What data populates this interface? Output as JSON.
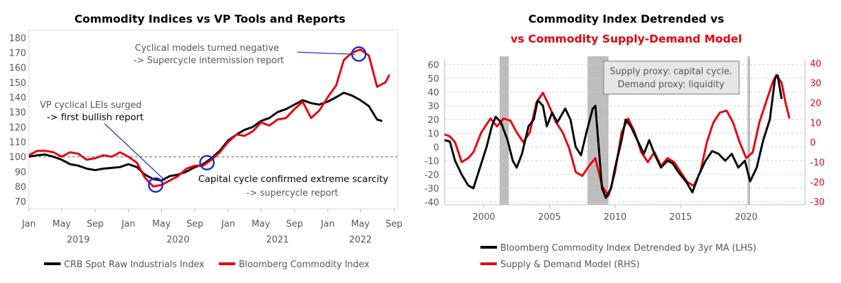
{
  "chart_data": [
    {
      "type": "line",
      "title": "Commodity Indices vs VP Tools and Reports",
      "x_tick_labels": [
        "Jan",
        "May",
        "Sep",
        "Jan",
        "May",
        "Sep",
        "Jan",
        "May",
        "Sep",
        "Jan",
        "May",
        "Sep"
      ],
      "x_year_labels": [
        "2019",
        "2020",
        "2021",
        "2022"
      ],
      "y_tick_labels": [
        "70",
        "80",
        "90",
        "100",
        "110",
        "120",
        "130",
        "140",
        "150",
        "160",
        "170",
        "180"
      ],
      "ylim": [
        65,
        185
      ],
      "xlim": [
        "2019-01",
        "2022-09"
      ],
      "reference_line": 100,
      "series": [
        {
          "name": "CRB Spot Raw Industrials Index",
          "color": "#000000",
          "points": [
            [
              "2019-01-01",
              100
            ],
            [
              "2019-02-01",
              101
            ],
            [
              "2019-03-01",
              101.5
            ],
            [
              "2019-04-01",
              100
            ],
            [
              "2019-05-01",
              98
            ],
            [
              "2019-06-01",
              95
            ],
            [
              "2019-07-01",
              94
            ],
            [
              "2019-08-01",
              92
            ],
            [
              "2019-09-01",
              91
            ],
            [
              "2019-10-01",
              92
            ],
            [
              "2019-11-01",
              92.5
            ],
            [
              "2019-12-01",
              93
            ],
            [
              "2020-01-01",
              95
            ],
            [
              "2020-02-01",
              93
            ],
            [
              "2020-03-01",
              88
            ],
            [
              "2020-04-01",
              85
            ],
            [
              "2020-05-01",
              84
            ],
            [
              "2020-06-01",
              87
            ],
            [
              "2020-07-01",
              88
            ],
            [
              "2020-08-01",
              90
            ],
            [
              "2020-09-01",
              93
            ],
            [
              "2020-10-01",
              95
            ],
            [
              "2020-11-01",
              99
            ],
            [
              "2020-12-01",
              104
            ],
            [
              "2021-01-01",
              111
            ],
            [
              "2021-02-01",
              115
            ],
            [
              "2021-03-01",
              118
            ],
            [
              "2021-04-01",
              120
            ],
            [
              "2021-05-01",
              124
            ],
            [
              "2021-06-01",
              126
            ],
            [
              "2021-07-01",
              130
            ],
            [
              "2021-08-01",
              132
            ],
            [
              "2021-09-01",
              135
            ],
            [
              "2021-10-01",
              138
            ],
            [
              "2021-11-01",
              136
            ],
            [
              "2021-12-01",
              135
            ],
            [
              "2022-01-01",
              137
            ],
            [
              "2022-02-01",
              140
            ],
            [
              "2022-03-01",
              143
            ],
            [
              "2022-04-01",
              141
            ],
            [
              "2022-05-01",
              138
            ],
            [
              "2022-06-01",
              134
            ],
            [
              "2022-07-01",
              125
            ],
            [
              "2022-07-20",
              124
            ]
          ]
        },
        {
          "name": "Bloomberg Commodity Index",
          "color": "#e8000b",
          "points": [
            [
              "2019-01-01",
              101
            ],
            [
              "2019-02-01",
              104
            ],
            [
              "2019-03-01",
              104
            ],
            [
              "2019-04-01",
              103
            ],
            [
              "2019-05-01",
              100
            ],
            [
              "2019-06-01",
              103
            ],
            [
              "2019-07-01",
              102
            ],
            [
              "2019-08-01",
              98
            ],
            [
              "2019-09-01",
              99
            ],
            [
              "2019-10-01",
              101
            ],
            [
              "2019-11-01",
              100
            ],
            [
              "2019-12-01",
              103
            ],
            [
              "2020-01-01",
              100
            ],
            [
              "2020-02-01",
              96
            ],
            [
              "2020-03-01",
              86
            ],
            [
              "2020-04-01",
              80
            ],
            [
              "2020-05-01",
              81
            ],
            [
              "2020-06-01",
              84
            ],
            [
              "2020-07-01",
              87
            ],
            [
              "2020-08-01",
              92
            ],
            [
              "2020-09-01",
              94
            ],
            [
              "2020-10-01",
              94
            ],
            [
              "2020-11-01",
              98
            ],
            [
              "2020-12-01",
              103
            ],
            [
              "2021-01-01",
              110
            ],
            [
              "2021-02-01",
              115
            ],
            [
              "2021-03-01",
              114
            ],
            [
              "2021-04-01",
              117
            ],
            [
              "2021-05-01",
              123
            ],
            [
              "2021-06-01",
              121
            ],
            [
              "2021-07-01",
              125
            ],
            [
              "2021-08-01",
              126
            ],
            [
              "2021-09-01",
              132
            ],
            [
              "2021-10-01",
              137
            ],
            [
              "2021-11-01",
              126
            ],
            [
              "2021-12-01",
              131
            ],
            [
              "2022-01-01",
              140
            ],
            [
              "2022-02-01",
              148
            ],
            [
              "2022-03-01",
              165
            ],
            [
              "2022-04-01",
              170
            ],
            [
              "2022-05-01",
              172
            ],
            [
              "2022-06-01",
              168
            ],
            [
              "2022-07-01",
              147
            ],
            [
              "2022-08-01",
              150
            ],
            [
              "2022-08-15",
              155
            ]
          ]
        }
      ],
      "highlights": [
        {
          "date": "2020-04-10",
          "value": 81
        },
        {
          "date": "2020-10-15",
          "value": 96
        },
        {
          "date": "2022-04-25",
          "value": 169
        }
      ],
      "annotations": [
        {
          "line1": "VP cyclical LEIs surged",
          "line2": "-> first bullish report"
        },
        {
          "line1": "Capital cycle confirmed extreme scarcity",
          "line2": "-> supercycle report"
        },
        {
          "line1": "Cyclical models turned negative",
          "line2": "-> Supercycle intermission report"
        }
      ],
      "legend_position": "bottom"
    },
    {
      "type": "line",
      "title_line1": "Commodity Index Detrended vs",
      "title_line2": "vs Commodity Supply-Demand Model",
      "title_line2_color": "#e8000b",
      "x_tick_labels": [
        "2000",
        "2005",
        "2010",
        "2015",
        "2020"
      ],
      "xlim": [
        1997,
        2024.5
      ],
      "y_left_tick_labels": [
        "-40",
        "-30",
        "-20",
        "-10",
        "0",
        "10",
        "20",
        "30",
        "40",
        "50",
        "60"
      ],
      "y_left_lim": [
        -42,
        64
      ],
      "y_right_tick_labels": [
        "-30",
        "-20",
        "-10",
        "0",
        "10",
        "20",
        "30",
        "40"
      ],
      "y_right_lim": [
        -31.5,
        42
      ],
      "shaded_periods": [
        [
          2001.2,
          2001.9
        ],
        [
          2007.9,
          2009.5
        ],
        [
          2020.1,
          2020.3
        ]
      ],
      "annotation_box": {
        "line1": "Supply proxy: capital cycle.",
        "line2": "Demand proxy: liquidity"
      },
      "series": [
        {
          "name": "Bloomberg Commodity Index Detrended by 3yr MA (LHS)",
          "color": "#000000",
          "axis": "left",
          "points": [
            [
              1997.0,
              5
            ],
            [
              1997.4,
              4
            ],
            [
              1997.8,
              -10
            ],
            [
              1998.3,
              -20
            ],
            [
              1998.8,
              -28
            ],
            [
              1999.2,
              -30
            ],
            [
              1999.6,
              -18
            ],
            [
              2000.2,
              0
            ],
            [
              2000.6,
              15
            ],
            [
              2000.9,
              22
            ],
            [
              2001.3,
              18
            ],
            [
              2001.8,
              5
            ],
            [
              2002.2,
              -10
            ],
            [
              2002.5,
              -15
            ],
            [
              2002.9,
              -5
            ],
            [
              2003.4,
              15
            ],
            [
              2003.8,
              20
            ],
            [
              2004.1,
              34
            ],
            [
              2004.5,
              30
            ],
            [
              2004.8,
              15
            ],
            [
              2005.2,
              25
            ],
            [
              2005.6,
              18
            ],
            [
              2006.2,
              28
            ],
            [
              2006.6,
              20
            ],
            [
              2007.0,
              0
            ],
            [
              2007.4,
              -6
            ],
            [
              2007.8,
              10
            ],
            [
              2008.3,
              28
            ],
            [
              2008.5,
              30
            ],
            [
              2008.8,
              -5
            ],
            [
              2009.0,
              -30
            ],
            [
              2009.3,
              -37
            ],
            [
              2009.7,
              -30
            ],
            [
              2010.0,
              -15
            ],
            [
              2010.5,
              5
            ],
            [
              2010.8,
              20
            ],
            [
              2011.2,
              15
            ],
            [
              2011.7,
              5
            ],
            [
              2012.2,
              -5
            ],
            [
              2012.6,
              5
            ],
            [
              2013.0,
              -5
            ],
            [
              2013.5,
              -15
            ],
            [
              2014.0,
              -10
            ],
            [
              2014.4,
              -12
            ],
            [
              2014.8,
              -18
            ],
            [
              2015.4,
              -25
            ],
            [
              2015.9,
              -33
            ],
            [
              2016.4,
              -20
            ],
            [
              2016.9,
              -10
            ],
            [
              2017.4,
              -3
            ],
            [
              2017.9,
              -5
            ],
            [
              2018.4,
              -10
            ],
            [
              2018.9,
              -5
            ],
            [
              2019.4,
              -15
            ],
            [
              2019.9,
              -10
            ],
            [
              2020.3,
              -25
            ],
            [
              2020.8,
              -15
            ],
            [
              2021.3,
              5
            ],
            [
              2021.8,
              20
            ],
            [
              2022.2,
              50
            ],
            [
              2022.4,
              52
            ],
            [
              2022.7,
              35
            ]
          ]
        },
        {
          "name": "Supply & Demand Model (RHS)",
          "color": "#e8000b",
          "axis": "right",
          "points": [
            [
              1997.0,
              4
            ],
            [
              1997.4,
              3
            ],
            [
              1997.8,
              0
            ],
            [
              1998.3,
              -10
            ],
            [
              1998.8,
              -8
            ],
            [
              1999.2,
              -5
            ],
            [
              1999.8,
              5
            ],
            [
              2000.5,
              12
            ],
            [
              2001.0,
              8
            ],
            [
              2001.5,
              12
            ],
            [
              2002.0,
              11
            ],
            [
              2002.5,
              5
            ],
            [
              2003.0,
              0
            ],
            [
              2003.5,
              5
            ],
            [
              2004.0,
              20
            ],
            [
              2004.5,
              25
            ],
            [
              2005.0,
              18
            ],
            [
              2005.5,
              10
            ],
            [
              2006.0,
              5
            ],
            [
              2006.5,
              -3
            ],
            [
              2007.0,
              -15
            ],
            [
              2007.5,
              -17
            ],
            [
              2008.0,
              -12
            ],
            [
              2008.5,
              -8
            ],
            [
              2009.0,
              -22
            ],
            [
              2009.5,
              -27
            ],
            [
              2010.0,
              -15
            ],
            [
              2010.5,
              5
            ],
            [
              2011.0,
              12
            ],
            [
              2011.5,
              5
            ],
            [
              2012.0,
              -5
            ],
            [
              2012.5,
              -10
            ],
            [
              2013.0,
              -5
            ],
            [
              2013.5,
              -12
            ],
            [
              2014.0,
              -8
            ],
            [
              2014.5,
              -10
            ],
            [
              2015.0,
              -15
            ],
            [
              2015.5,
              -20
            ],
            [
              2016.0,
              -22
            ],
            [
              2016.5,
              -15
            ],
            [
              2017.0,
              0
            ],
            [
              2017.5,
              10
            ],
            [
              2018.0,
              15
            ],
            [
              2018.5,
              16
            ],
            [
              2019.0,
              10
            ],
            [
              2019.5,
              0
            ],
            [
              2020.0,
              -8
            ],
            [
              2020.5,
              -5
            ],
            [
              2021.0,
              10
            ],
            [
              2021.5,
              20
            ],
            [
              2022.0,
              30
            ],
            [
              2022.3,
              34
            ],
            [
              2022.7,
              30
            ],
            [
              2023.0,
              20
            ],
            [
              2023.3,
              12
            ]
          ]
        }
      ],
      "legend_position": "bottom"
    }
  ]
}
